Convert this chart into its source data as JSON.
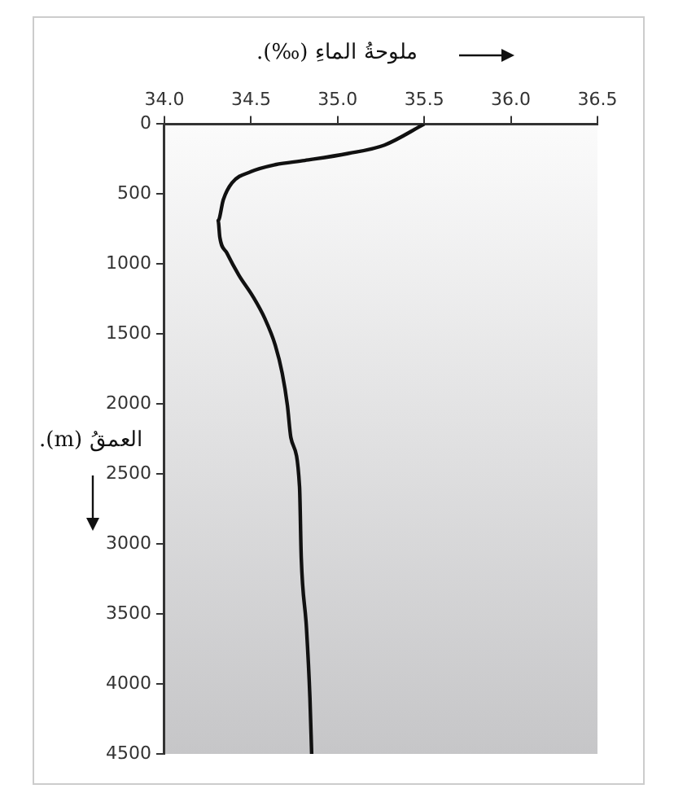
{
  "chart_data": {
    "type": "line",
    "xlabel": "ملوحةُ الماءِ (‰).",
    "ylabel": "العمقُ (m).",
    "xlim": [
      34.0,
      36.5
    ],
    "xticks": [
      {
        "value": 34,
        "label": "34.0"
      },
      34.5,
      {
        "value": 35,
        "label": "35.0"
      },
      35.5,
      {
        "value": 36,
        "label": "36.0"
      },
      36.5
    ],
    "ylim": [
      4500,
      0
    ],
    "yticks": [
      0,
      500,
      1000,
      1500,
      2000,
      2500,
      3000,
      3500,
      4000,
      4500
    ],
    "grid": false,
    "legend": false,
    "marker": "none",
    "line_style": "solid",
    "series": [
      {
        "color": "#111111",
        "x": [
          35.5,
          35.27,
          35.06,
          34.81,
          34.64,
          34.5,
          34.39,
          34.34,
          34.31,
          34.32,
          34.36,
          34.43,
          34.51,
          34.58,
          34.64,
          34.68,
          34.71,
          34.73,
          34.78,
          34.79,
          34.82,
          34.84,
          34.85
        ],
        "values": [
          0,
          150,
          210,
          260,
          290,
          340,
          420,
          540,
          690,
          810,
          920,
          1080,
          1230,
          1390,
          1580,
          1780,
          2010,
          2240,
          2590,
          3100,
          3600,
          4100,
          4500
        ]
      }
    ]
  }
}
